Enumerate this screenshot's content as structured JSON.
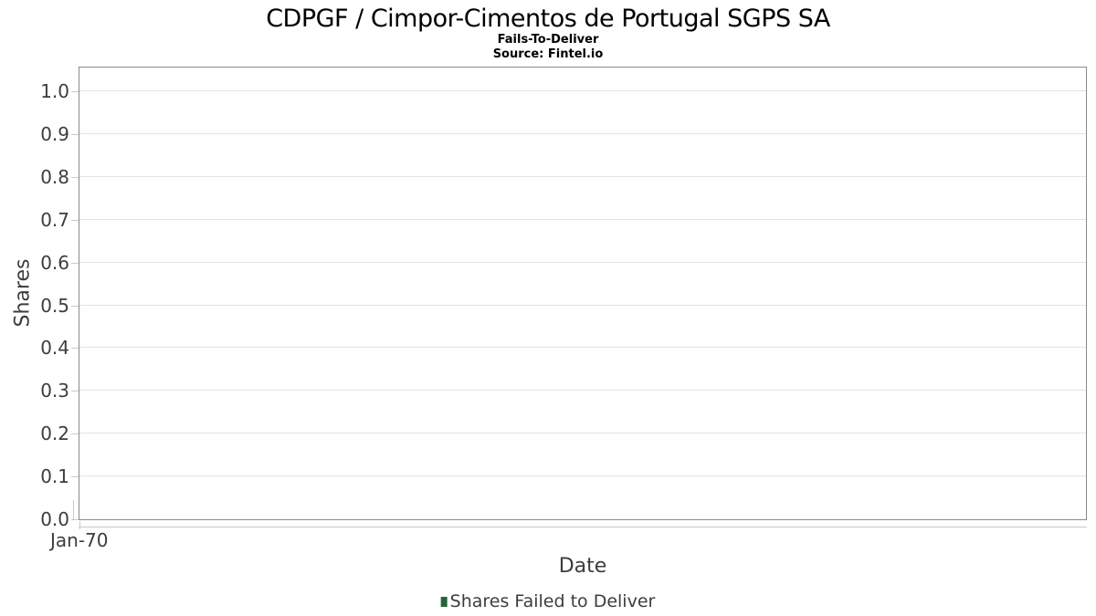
{
  "chart_data": {
    "type": "bar",
    "title": "CDPGF / Cimpor-Cimentos de Portugal SGPS SA",
    "subtitle": "Fails-To-Deliver",
    "source": "Source: Fintel.io",
    "xlabel": "Date",
    "ylabel": "Shares",
    "x_tick_labels": [
      "Jan-70"
    ],
    "y_tick_labels": [
      "0.0",
      "0.1",
      "0.2",
      "0.3",
      "0.4",
      "0.5",
      "0.6",
      "0.7",
      "0.8",
      "0.9",
      "1.0"
    ],
    "ylim": [
      0.0,
      1.057
    ],
    "grid": true,
    "legend_position": "bottom-center",
    "series": [
      {
        "name": "Shares Failed to Deliver",
        "type": "bar",
        "color": "#276437",
        "x": [],
        "values": []
      }
    ]
  },
  "colors": {
    "background": "#ffffff",
    "title_text": "#000000",
    "axis_text": "#3d3d3d",
    "plot_border": "#8a8a8a",
    "gridline": "#e3e3e3",
    "tick": "#c9c9c9",
    "legend_marker": "#276437"
  }
}
